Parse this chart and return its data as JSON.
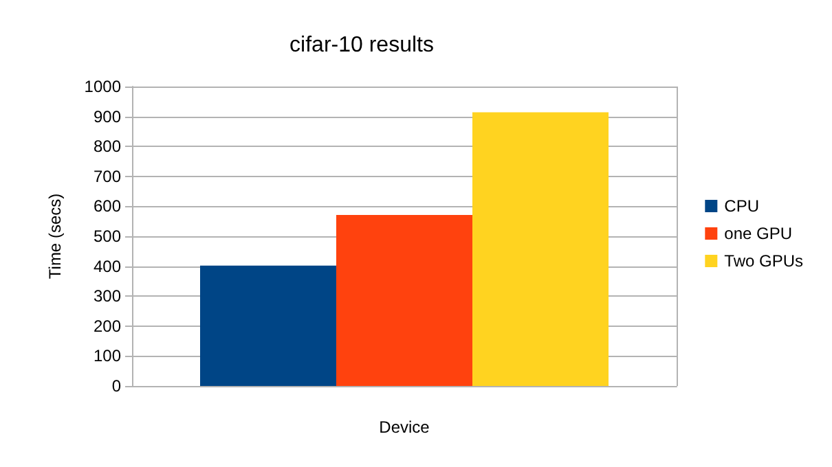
{
  "chart_data": {
    "type": "bar",
    "title": "cifar-10 results",
    "xlabel": "Device",
    "ylabel": "Time (secs)",
    "categories": [
      null
    ],
    "series": [
      {
        "name": "CPU",
        "color": "#004586",
        "values": [
          402
        ]
      },
      {
        "name": "one GPU",
        "color": "#ff420e",
        "values": [
          571
        ]
      },
      {
        "name": "Two GPUs",
        "color": "#ffd320",
        "values": [
          914
        ]
      }
    ],
    "ylim": [
      0,
      1000
    ],
    "yticks": [
      0,
      100,
      200,
      300,
      400,
      500,
      600,
      700,
      800,
      900,
      1000
    ],
    "grid": "y",
    "legend": "right"
  }
}
